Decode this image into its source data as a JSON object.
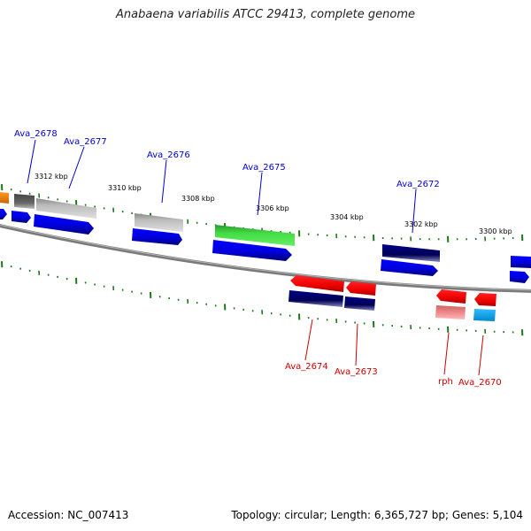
{
  "title": "Anabaena variabilis ATCC 29413, complete genome",
  "footer": {
    "accession": "Accession: NC_007413",
    "summary": "Topology: circular; Length: 6,365,727 bp; Genes: 5,104"
  },
  "scale_labels": [
    "3312 kbp",
    "3310 kbp",
    "3308 kbp",
    "3306 kbp",
    "3304 kbp",
    "3302 kbp",
    "3300 kbp"
  ],
  "genes_top": [
    "Ava_2678",
    "Ava_2677",
    "Ava_2676",
    "Ava_2675",
    "Ava_2672"
  ],
  "genes_bottom": [
    "Ava_2674",
    "Ava_2673",
    "rph",
    "Ava_2670"
  ],
  "colors": {
    "backbone": "#808080",
    "ticks": "#1a7a1a",
    "label_top": "#0000cc",
    "label_bottom": "#cc0000",
    "blue": "#0000ee",
    "navy": "#000066",
    "red": "#ee0000",
    "green": "#33cc33",
    "gray": "#b0b0b0",
    "orange": "#ff8800",
    "pink": "#ee8888",
    "cyan": "#22aaee"
  }
}
